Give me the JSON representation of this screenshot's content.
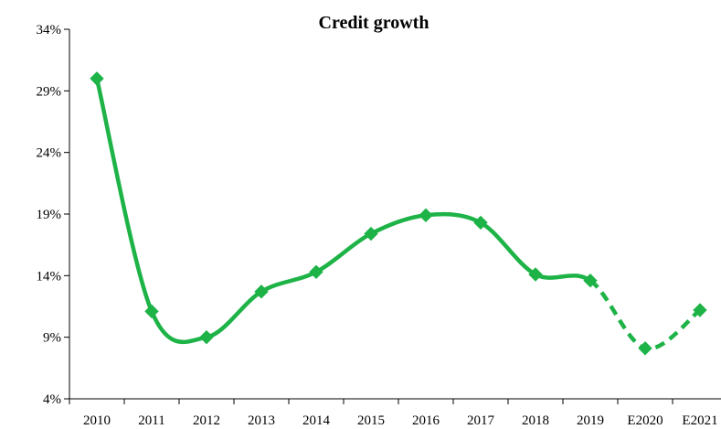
{
  "chart_data": {
    "type": "line",
    "title": "Credit growth",
    "xlabel": "",
    "ylabel": "",
    "categories": [
      "2010",
      "2011",
      "2012",
      "2013",
      "2014",
      "2015",
      "2016",
      "2017",
      "2018",
      "2019",
      "E2020",
      "E2021"
    ],
    "series": [
      {
        "values": [
          0.3,
          0.111,
          0.09,
          0.127,
          0.143,
          0.174,
          0.189,
          0.183,
          0.141,
          0.136,
          0.081,
          0.112
        ],
        "estimated_from": "E2020",
        "color": "#1db347",
        "marker": "diamond"
      }
    ],
    "y_ticks": [
      "4%",
      "9%",
      "14%",
      "19%",
      "24%",
      "29%",
      "34%"
    ],
    "ylim": [
      0.04,
      0.34
    ],
    "grid": false,
    "legend": "none"
  }
}
